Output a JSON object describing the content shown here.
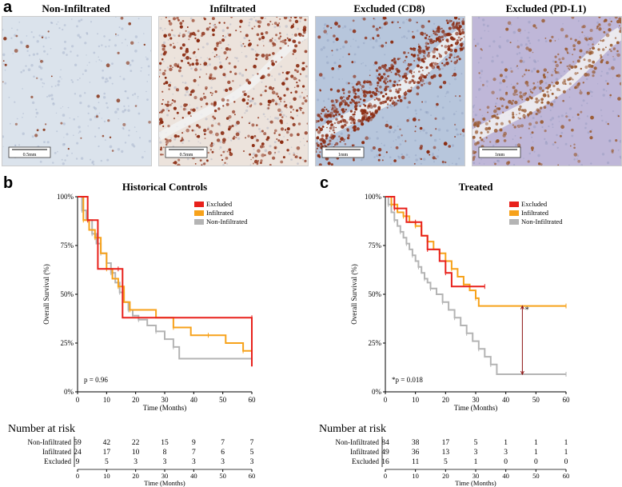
{
  "panels": {
    "a": {
      "letter": "a",
      "images": [
        {
          "title": "Non-Infiltrated",
          "scale_label": "0.5mm",
          "base": "#dbe3ec",
          "speck": "#8a3a1f",
          "density": 40
        },
        {
          "title": "Infiltrated",
          "scale_label": "0.5mm",
          "base": "#ece3dc",
          "speck": "#8a2a10",
          "density": 520
        },
        {
          "title": "Excluded (CD8)",
          "scale_label": "1mm",
          "base": "#b7c6dc",
          "speck": "#8a2a10",
          "density": 700
        },
        {
          "title": "Excluded (PD-L1)",
          "scale_label": "1mm",
          "base": "#bfb7d8",
          "speck": "#9a5a30",
          "density": 380
        }
      ]
    },
    "b": {
      "letter": "b"
    },
    "c": {
      "letter": "c"
    }
  },
  "chart_data": [
    {
      "type": "line",
      "title": "Historical Controls",
      "xlabel": "Time (Months)",
      "ylabel": "Overall Survival (%)",
      "xlim": [
        0,
        60
      ],
      "ylim": [
        0,
        100
      ],
      "x_ticks": [
        0,
        10,
        20,
        30,
        40,
        50,
        60
      ],
      "y_ticks": [
        "0%",
        "25%",
        "50%",
        "75%",
        "100%"
      ],
      "annotation": "p = 0.96",
      "legend_position": "top-right",
      "series": [
        {
          "name": "Excluded",
          "color": "#e8211c",
          "x": [
            0,
            3.5,
            7,
            14,
            15.5,
            60,
            60
          ],
          "y": [
            100,
            88,
            63,
            63,
            38,
            38,
            13
          ]
        },
        {
          "name": "Infiltrated",
          "color": "#f7a21b",
          "x": [
            0,
            2,
            4,
            6,
            8,
            10,
            12,
            14,
            16,
            18,
            27,
            33,
            39,
            45,
            51,
            57,
            60
          ],
          "y": [
            100,
            88,
            83,
            79,
            71,
            63,
            58,
            54,
            46,
            42,
            38,
            33,
            29,
            29,
            25,
            21,
            21
          ]
        },
        {
          "name": "Non-Infiltrated",
          "color": "#b4b4b4",
          "x": [
            0,
            1.5,
            3,
            5,
            6.5,
            8,
            10,
            11.5,
            13,
            14.5,
            16,
            17.5,
            19,
            21,
            24,
            27,
            30,
            33,
            35,
            60
          ],
          "y": [
            100,
            93,
            88,
            81,
            76,
            71,
            66,
            61,
            56,
            51,
            46,
            42,
            39,
            37,
            34,
            31,
            27,
            23,
            17,
            17
          ]
        }
      ],
      "risk_table": {
        "title": "Number at risk",
        "rows": [
          {
            "label": "Non-Infiltrated",
            "values": [
              "59",
              "42",
              "22",
              "15",
              "9",
              "7",
              "7"
            ]
          },
          {
            "label": "Infiltrated",
            "values": [
              "24",
              "17",
              "10",
              "8",
              "7",
              "6",
              "5"
            ]
          },
          {
            "label": "Excluded",
            "values": [
              "9",
              "5",
              "3",
              "3",
              "3",
              "3",
              "3"
            ]
          }
        ],
        "x_ticks": [
          "0",
          "10",
          "20",
          "30",
          "40",
          "50",
          "60"
        ],
        "xlabel": "Time (Months)"
      }
    },
    {
      "type": "line",
      "title": "Treated",
      "xlabel": "Time (Months)",
      "ylabel": "Overall Survival (%)",
      "xlim": [
        0,
        60
      ],
      "ylim": [
        0,
        100
      ],
      "x_ticks": [
        0,
        10,
        20,
        30,
        40,
        50,
        60
      ],
      "y_ticks": [
        "0%",
        "25%",
        "50%",
        "75%",
        "100%"
      ],
      "annotation": "*p = 0.018",
      "bracket_label": "*",
      "legend_position": "top-right",
      "series": [
        {
          "name": "Excluded",
          "color": "#e8211c",
          "x": [
            0,
            3,
            7,
            10,
            12,
            14,
            18,
            20,
            22,
            33
          ],
          "y": [
            100,
            94,
            87,
            87,
            80,
            73,
            67,
            61,
            54,
            54
          ]
        },
        {
          "name": "Infiltrated",
          "color": "#f7a21b",
          "x": [
            0,
            2,
            4,
            6,
            8,
            10,
            12,
            14,
            16,
            18,
            20,
            22,
            24,
            26,
            28,
            30,
            31,
            60
          ],
          "y": [
            100,
            96,
            92,
            90,
            87,
            85,
            80,
            77,
            73,
            71,
            67,
            63,
            59,
            55,
            52,
            48,
            44,
            44
          ]
        },
        {
          "name": "Non-Infiltrated",
          "color": "#b4b4b4",
          "x": [
            0,
            1,
            2,
            3,
            4,
            5,
            6,
            7,
            8,
            9,
            10,
            11,
            12,
            13,
            14,
            15,
            17,
            19,
            21,
            23,
            25,
            27,
            29,
            31,
            33,
            35,
            37,
            60
          ],
          "y": [
            100,
            96,
            92,
            88,
            85,
            82,
            79,
            76,
            73,
            70,
            67,
            64,
            61,
            58,
            56,
            53,
            50,
            46,
            42,
            38,
            34,
            30,
            26,
            22,
            18,
            14,
            9,
            9
          ]
        }
      ],
      "risk_table": {
        "title": "Number at risk",
        "rows": [
          {
            "label": "Non-Infiltrated",
            "values": [
              "84",
              "38",
              "17",
              "5",
              "1",
              "1",
              "1"
            ]
          },
          {
            "label": "Infiltrated",
            "values": [
              "49",
              "36",
              "13",
              "3",
              "3",
              "1",
              "1"
            ]
          },
          {
            "label": "Excluded",
            "values": [
              "16",
              "11",
              "5",
              "1",
              "0",
              "0",
              "0"
            ]
          }
        ],
        "x_ticks": [
          "0",
          "10",
          "20",
          "30",
          "40",
          "50",
          "60"
        ],
        "xlabel": "Time (Months)"
      }
    }
  ]
}
